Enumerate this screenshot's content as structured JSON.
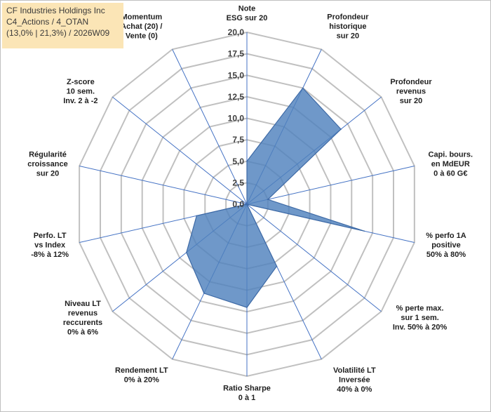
{
  "title_box": {
    "line1": "CF Industries Holdings Inc",
    "line2": "C4_Actions / 4_OTAN",
    "line3": "(13,0% | 21,3%) / 2026W09"
  },
  "colors": {
    "fill": "#4f81bd",
    "stroke": "#3e6aa6",
    "spoke": "#4472c4",
    "grid": "#c0c0c0",
    "title_bg": "#fbe5b6"
  },
  "chart_data": {
    "type": "radar",
    "rmin": 0,
    "rmax": 20,
    "ticks": [
      "0,0",
      "2,5",
      "5,0",
      "7,5",
      "10,0",
      "12,5",
      "15,0",
      "17,5",
      "20,0"
    ],
    "axes": [
      [
        "Note",
        "ESG sur 20"
      ],
      [
        "Profondeur",
        "historique",
        "sur 20"
      ],
      [
        "Profondeur",
        "revenus",
        "sur 20"
      ],
      [
        "Capi. bours.",
        "en MdEUR",
        "0 à 60 G€"
      ],
      [
        "% perfo 1A",
        "positive",
        "50% à 80%"
      ],
      [
        "% perte max.",
        "sur 1 sem.",
        "Inv. 50% à 20%"
      ],
      [
        "Volatilité LT",
        "Inversée",
        "40% à 0%"
      ],
      [
        "Ratio Sharpe",
        "0 à 1"
      ],
      [
        "Rendement LT",
        "0% à 20%"
      ],
      [
        "Niveau LT",
        "revenus",
        "reccurents",
        "0% à 6%"
      ],
      [
        "Perfo. LT",
        "vs Index",
        "-8% à 12%"
      ],
      [
        "Régularité",
        "croissance",
        "sur 20"
      ],
      [
        "Z-score",
        "10 sem.",
        "Inv. 2 à -2"
      ],
      [
        "Momentum",
        "Achat (20) /",
        "Vente (0)"
      ]
    ],
    "values": [
      5,
      15,
      14,
      2.5,
      14,
      0,
      8,
      12,
      11.5,
      9,
      6,
      0,
      0,
      0
    ],
    "grid": true,
    "legend": "none"
  }
}
